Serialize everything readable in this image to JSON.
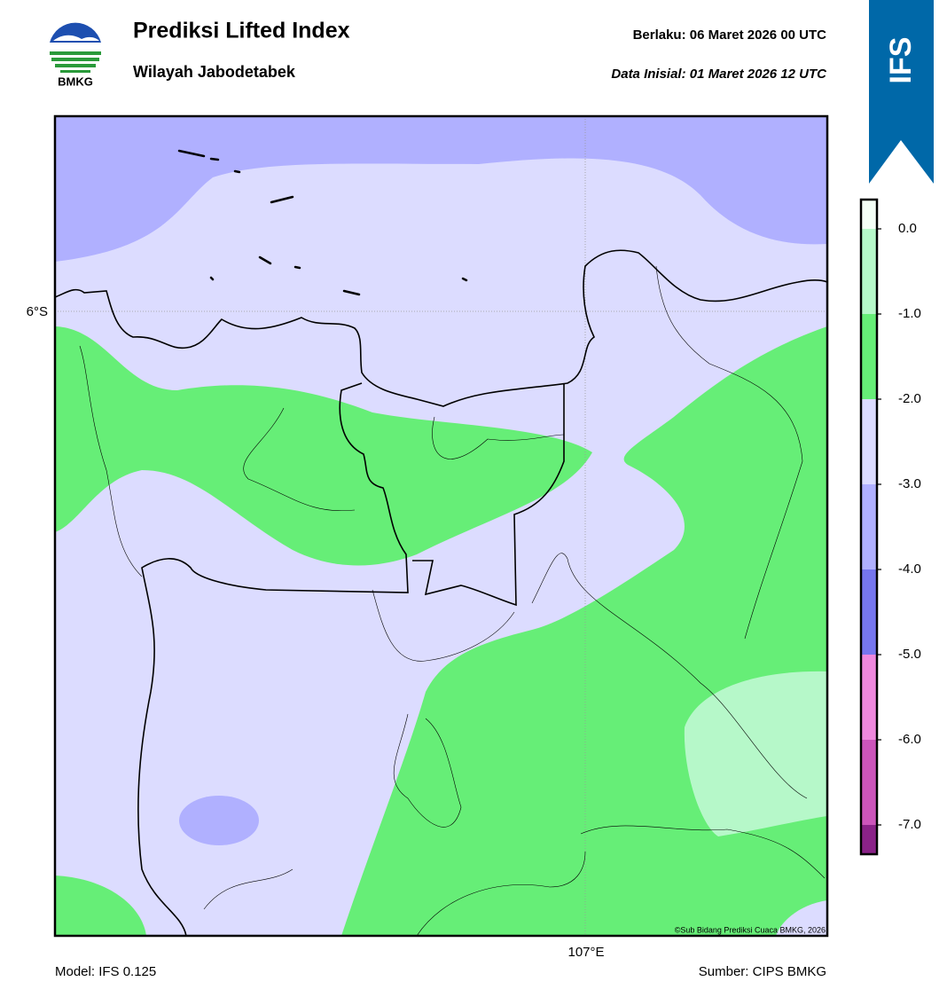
{
  "header": {
    "logo_text": "BMKG",
    "title": "Prediksi Lifted Index",
    "subtitle": "Wilayah Jabodetabek",
    "valid": "Berlaku:  06 Maret 2026 00 UTC",
    "initial": "Data Inisial:  01 Maret 2026 12 UTC",
    "model_badge": "IFS"
  },
  "map": {
    "lat_label": "6°S",
    "lon_label": "107°E",
    "credit": "©Sub Bidang Prediksi Cuaca BMKG, 2026"
  },
  "colorbar": {
    "labels": [
      "0.0",
      "-1.0",
      "-2.0",
      "-3.0",
      "-4.0",
      "-5.0",
      "-6.0",
      "-7.0"
    ],
    "colors": [
      "#f4fff6",
      "#b6f8c9",
      "#66ee77",
      "#dcdcff",
      "#b0b0ff",
      "#7676ee",
      "#ee88dd",
      "#cc55bb",
      "#8a2288"
    ]
  },
  "footer": {
    "model": "Model: IFS 0.125",
    "source": "Sumber: CIPS BMKG"
  }
}
